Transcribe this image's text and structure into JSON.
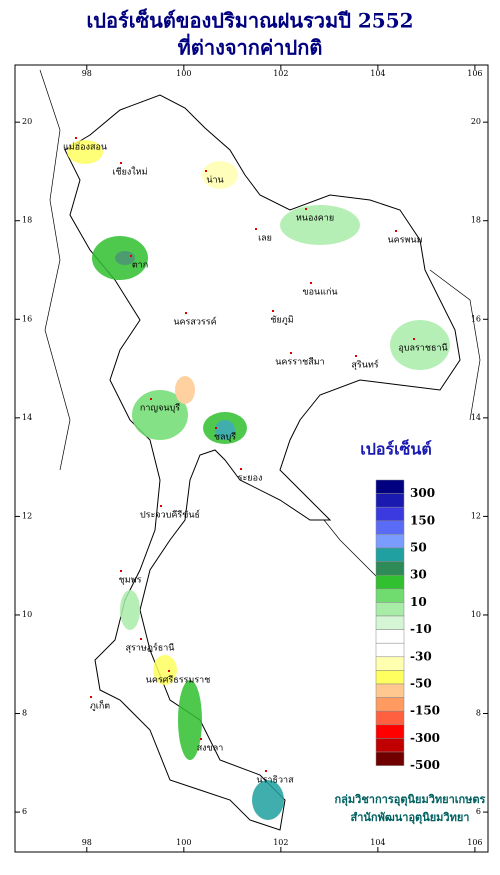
{
  "title_lines": [
    "เปอร์เซ็นต์ของปริมาณฝนรวมปี 2552",
    "ที่ต่างจากค่าปกติ"
  ],
  "map": {
    "lon_range": [
      96.52,
      106.27
    ],
    "lat_range": [
      5.19,
      21.16
    ],
    "lon_ticks": [
      98,
      100,
      102,
      104,
      106
    ],
    "lat_ticks": [
      6,
      8,
      10,
      12,
      14,
      16,
      18,
      20
    ],
    "provinces": [
      "แม่ฮ่องสอน",
      "เชียงใหม่",
      "น่าน",
      "เลย",
      "หนองคาย",
      "นครพนม",
      "ตาก",
      "ขอนแก่น",
      "ชัยภูมิ",
      "นครสวรรค์",
      "อุบลราชธานี",
      "นครราชสีมา",
      "สุรินทร์",
      "กาญจนบุรี",
      "ชลบุรี",
      "ระยอง",
      "ประจวบคีรีขันธ์",
      "ชุมพร",
      "สุราษฎร์ธานี",
      "ภูเก็ต",
      "นครศรีธรรมราช",
      "สงขลา",
      "นราธิวาส"
    ]
  },
  "legend": {
    "title": "เปอร์เซ็นต์",
    "colors": [
      "#000080",
      "#1a1ab0",
      "#3a3ae0",
      "#5a6cf5",
      "#7a9cff",
      "#20a0a0",
      "#2e8b57",
      "#30c030",
      "#70dc70",
      "#a8eca8",
      "#d4f6d4",
      "#ffffff",
      "#ffffff",
      "#ffffb0",
      "#ffff60",
      "#ffc890",
      "#ff9a60",
      "#ff6040",
      "#ff0000",
      "#c00000",
      "#700000"
    ],
    "labels": [
      300,
      150,
      50,
      30,
      10,
      -10,
      -30,
      -50,
      -150,
      -300,
      -500
    ]
  },
  "credits": [
    "กลุ่มวิชาการอุตุนิยมวิทยาเกษตร",
    "สำนักพัฒนาอุตุนิยมวิทยา"
  ]
}
